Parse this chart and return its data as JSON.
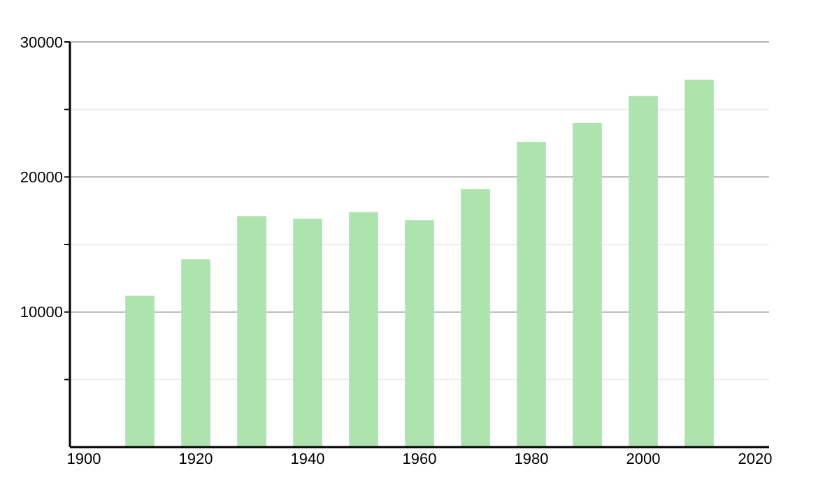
{
  "chart_data": {
    "type": "bar",
    "x": [
      1910,
      1920,
      1930,
      1940,
      1950,
      1960,
      1970,
      1980,
      1990,
      2000,
      2010
    ],
    "values": [
      11200,
      13900,
      17100,
      16900,
      17400,
      16800,
      19100,
      22600,
      24000,
      26000,
      27200
    ],
    "color": "#ade3ad",
    "xlim": [
      1897.5,
      2022.5
    ],
    "xticks": [
      1900,
      1920,
      1940,
      1960,
      1980,
      2000,
      2020
    ],
    "ylim": [
      0,
      30000
    ],
    "yticks": [
      {
        "value": 5000,
        "label": null
      },
      10000,
      {
        "value": 15000,
        "label": null
      },
      20000,
      {
        "value": 25000,
        "label": null
      },
      30000
    ],
    "grid": "y"
  }
}
